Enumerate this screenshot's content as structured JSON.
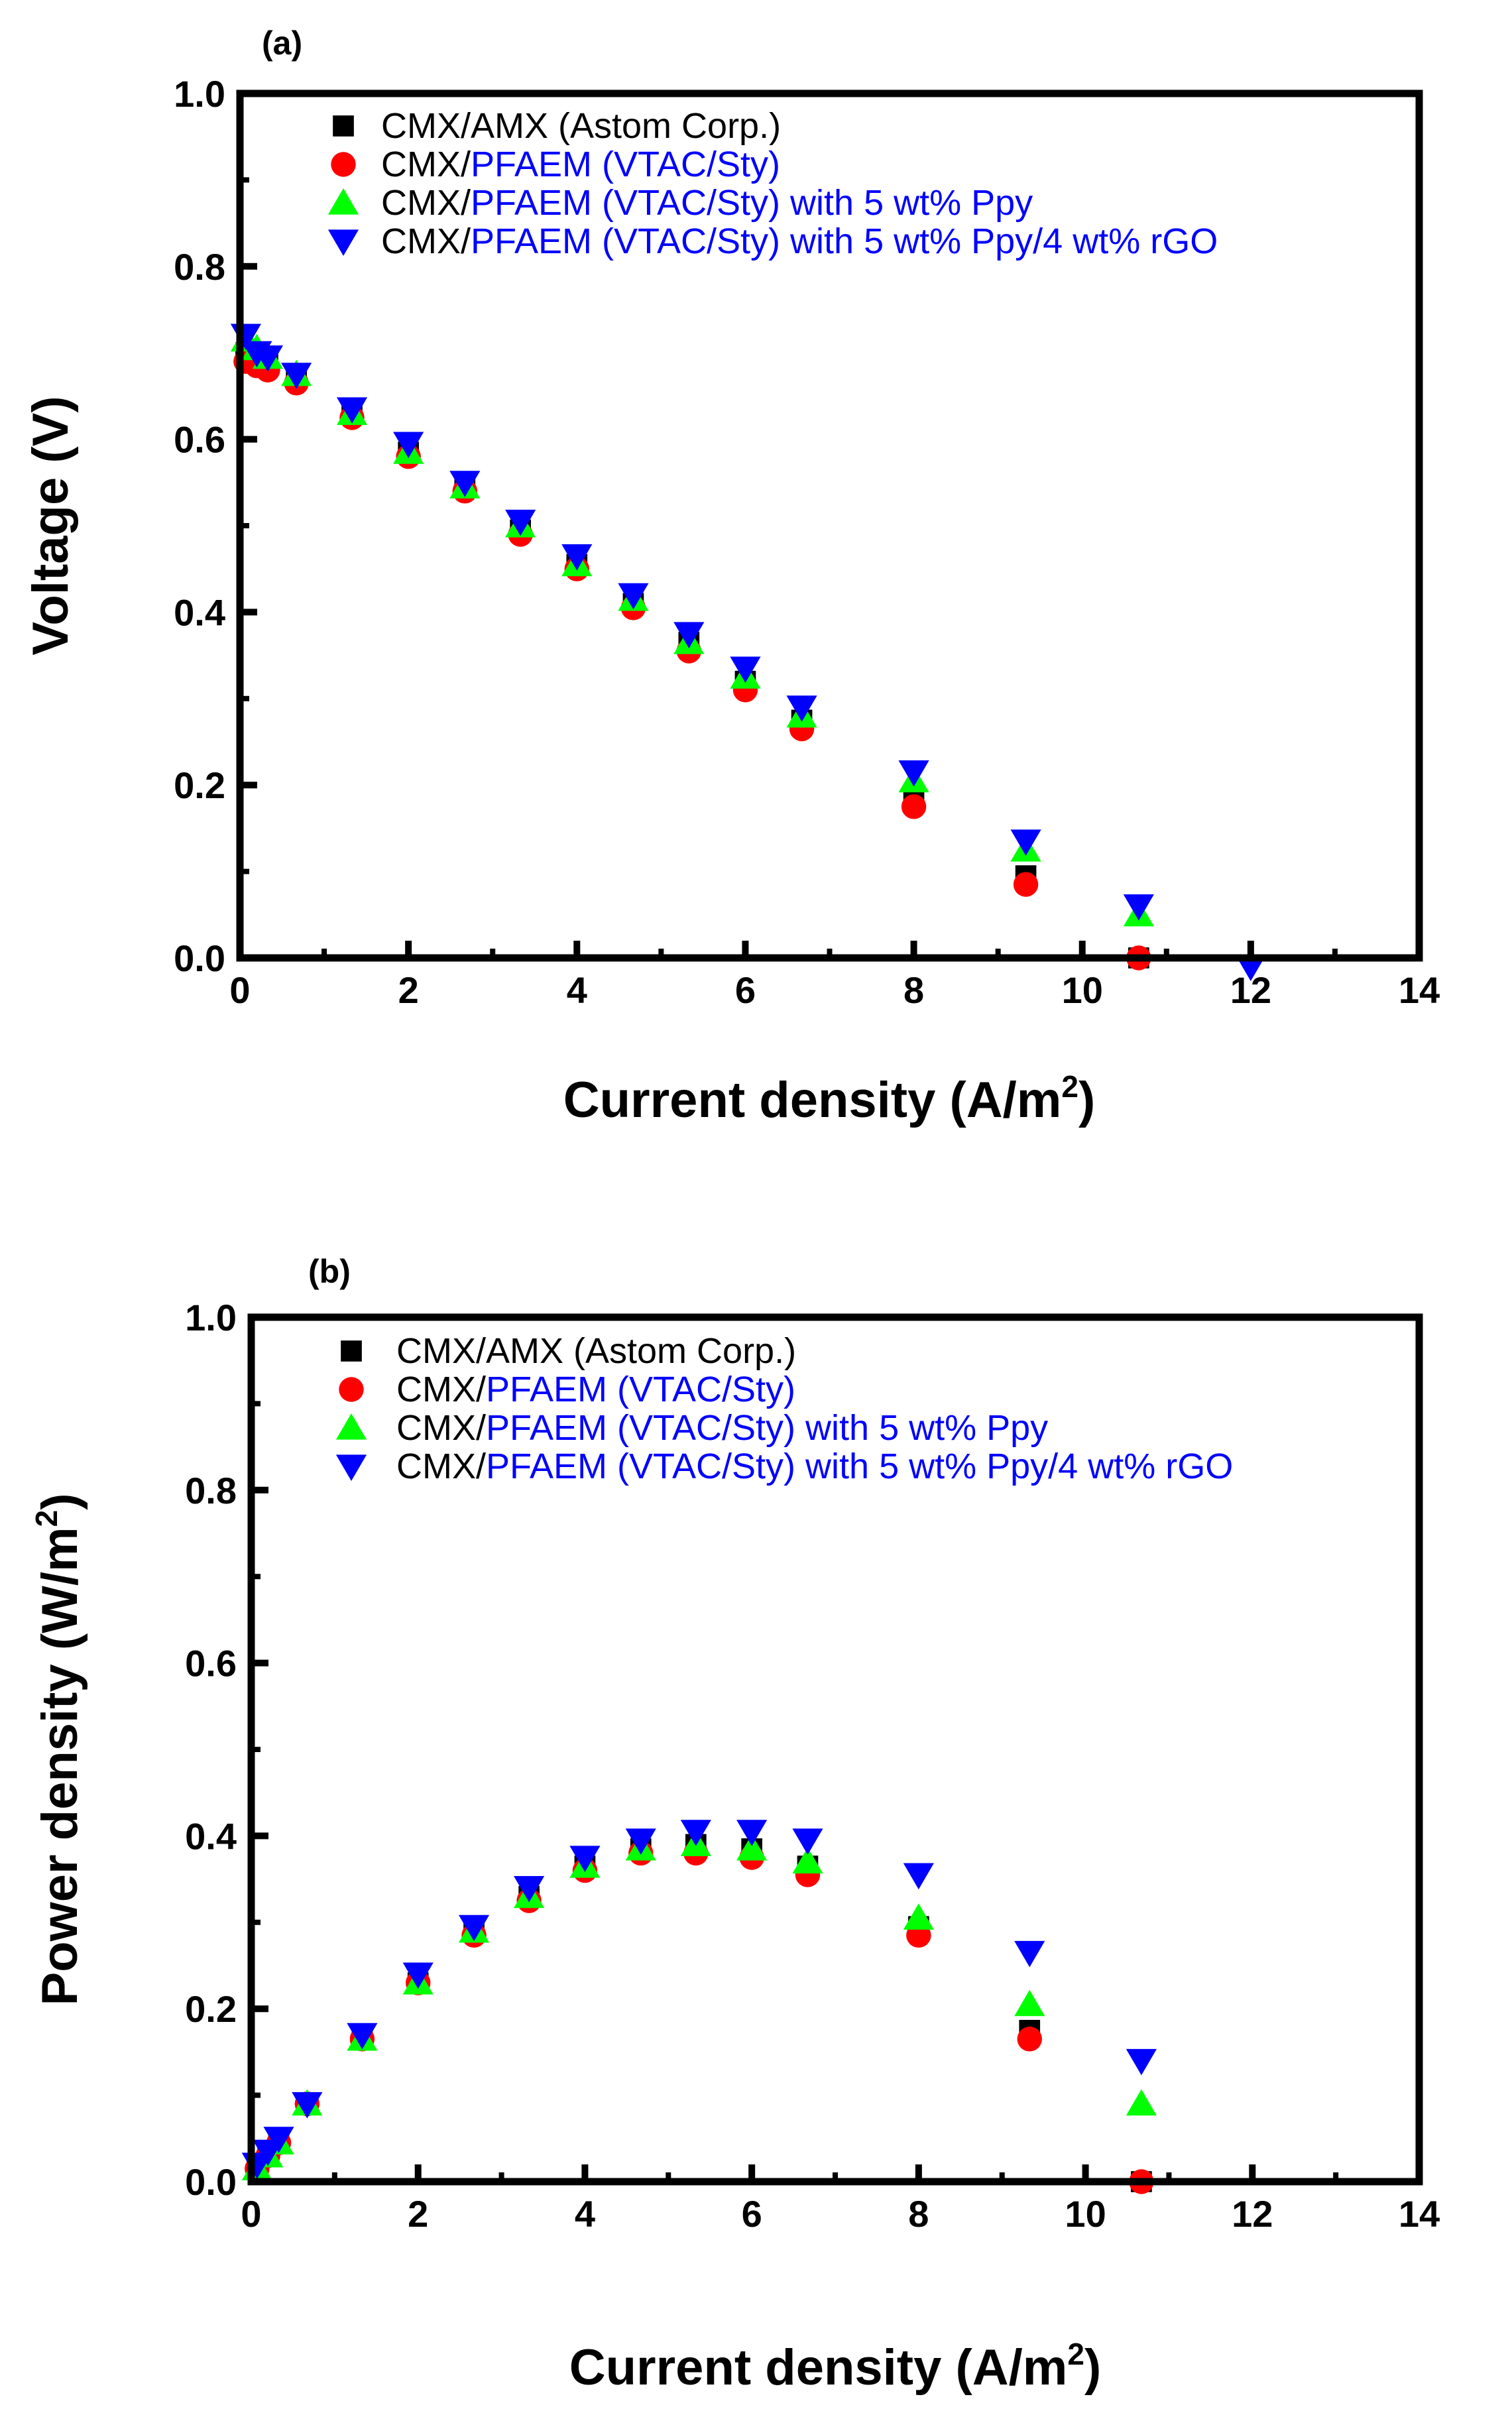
{
  "chart_data": [
    {
      "type": "scatter",
      "panel_label": "(a)",
      "xlabel": "Current density (A/m",
      "xlabel_sup": "2",
      "xlabel_close": ")",
      "ylabel": "Voltage (V)",
      "ylabel_sup": "",
      "ylabel_close": "",
      "xlim": [
        0,
        14
      ],
      "ylim": [
        0,
        1.0
      ],
      "xticks": [
        "0",
        "2",
        "4",
        "6",
        "8",
        "10",
        "12",
        "14"
      ],
      "yticks": [
        "0.0",
        "0.2",
        "0.4",
        "0.6",
        "0.8",
        "1.0"
      ],
      "legend_position": "top-left",
      "series": [
        {
          "name": "CMX/AMX (Astom Corp.)",
          "label_prefix": "CMX/AMX (Astom Corp.)",
          "label_suffix": "",
          "marker": "square",
          "color": "#000000",
          "x": [
            0.07,
            0.2,
            0.33,
            0.67,
            1.33,
            2.0,
            2.67,
            3.33,
            4.0,
            4.67,
            5.33,
            6.0,
            6.67,
            8.0,
            9.33,
            10.67
          ],
          "y": [
            0.7,
            0.695,
            0.69,
            0.67,
            0.63,
            0.585,
            0.545,
            0.495,
            0.455,
            0.41,
            0.365,
            0.32,
            0.275,
            0.185,
            0.095,
            0.0
          ]
        },
        {
          "name": "CMX/PFAEM (VTAC/Sty)",
          "label_prefix": "CMX/",
          "label_suffix": "PFAEM (VTAC/Sty)",
          "marker": "circle",
          "color": "#ff0000",
          "x": [
            0.07,
            0.2,
            0.33,
            0.67,
            1.33,
            2.0,
            2.67,
            3.33,
            4.0,
            4.67,
            5.33,
            6.0,
            6.67,
            8.0,
            9.33,
            10.67
          ],
          "y": [
            0.69,
            0.685,
            0.68,
            0.665,
            0.625,
            0.58,
            0.54,
            0.49,
            0.45,
            0.405,
            0.355,
            0.31,
            0.265,
            0.175,
            0.085,
            0.0
          ]
        },
        {
          "name": "CMX/PFAEM (VTAC/Sty) with 5 wt% Ppy",
          "label_prefix": "CMX/",
          "label_suffix": "PFAEM (VTAC/Sty) with 5 wt% Ppy",
          "marker": "triangle-up",
          "color": "#00ff00",
          "x": [
            0.07,
            0.2,
            0.33,
            0.67,
            1.33,
            2.0,
            2.67,
            3.33,
            4.0,
            4.67,
            5.33,
            6.0,
            6.67,
            8.0,
            9.33,
            10.67
          ],
          "y": [
            0.715,
            0.705,
            0.695,
            0.675,
            0.63,
            0.585,
            0.545,
            0.5,
            0.455,
            0.415,
            0.365,
            0.325,
            0.28,
            0.205,
            0.125,
            0.05
          ]
        },
        {
          "name": "CMX/PFAEM (VTAC/Sty) with 5 wt% Ppy/4 wt% rGO",
          "label_prefix": "CMX/",
          "label_suffix": "PFAEM (VTAC/Sty) with 5 wt% Ppy/4 wt% rGO",
          "marker": "triangle-down",
          "color": "#0000ff",
          "x": [
            0.07,
            0.2,
            0.33,
            0.67,
            1.33,
            2.0,
            2.67,
            3.33,
            4.0,
            4.67,
            5.33,
            6.0,
            6.67,
            8.0,
            9.33,
            10.67,
            12.0
          ],
          "y": [
            0.72,
            0.7,
            0.695,
            0.675,
            0.635,
            0.595,
            0.55,
            0.505,
            0.465,
            0.42,
            0.375,
            0.335,
            0.29,
            0.215,
            0.135,
            0.06,
            -0.01
          ]
        }
      ]
    },
    {
      "type": "scatter",
      "panel_label": "(b)",
      "xlabel": "Current density (A/m",
      "xlabel_sup": "2",
      "xlabel_close": ")",
      "ylabel": "Power density (W/m",
      "ylabel_sup": "2",
      "ylabel_close": ")",
      "xlim": [
        0,
        14
      ],
      "ylim": [
        0,
        1.0
      ],
      "xticks": [
        "0",
        "2",
        "4",
        "6",
        "8",
        "10",
        "12",
        "14"
      ],
      "yticks": [
        "0.0",
        "0.2",
        "0.4",
        "0.6",
        "0.8",
        "1.0"
      ],
      "legend_position": "top-left",
      "series": [
        {
          "name": "CMX/AMX (Astom Corp.)",
          "label_prefix": "CMX/AMX (Astom Corp.)",
          "label_suffix": "",
          "marker": "square",
          "color": "#000000",
          "x": [
            0.07,
            0.2,
            0.33,
            0.67,
            1.33,
            2.0,
            2.67,
            3.33,
            4.0,
            4.67,
            5.33,
            6.0,
            6.67,
            8.0,
            9.33,
            10.67
          ],
          "y": [
            0.015,
            0.03,
            0.045,
            0.09,
            0.165,
            0.23,
            0.29,
            0.33,
            0.365,
            0.385,
            0.39,
            0.385,
            0.365,
            0.295,
            0.175,
            0.0
          ]
        },
        {
          "name": "CMX/PFAEM (VTAC/Sty)",
          "label_prefix": "CMX/",
          "label_suffix": "PFAEM (VTAC/Sty)",
          "marker": "circle",
          "color": "#ff0000",
          "x": [
            0.07,
            0.2,
            0.33,
            0.67,
            1.33,
            2.0,
            2.67,
            3.33,
            4.0,
            4.67,
            5.33,
            6.0,
            6.67,
            8.0,
            9.33,
            10.67
          ],
          "y": [
            0.015,
            0.03,
            0.045,
            0.09,
            0.165,
            0.23,
            0.285,
            0.325,
            0.36,
            0.38,
            0.38,
            0.375,
            0.355,
            0.285,
            0.165,
            0.0
          ]
        },
        {
          "name": "CMX/PFAEM (VTAC/Sty) with 5 wt% Ppy",
          "label_prefix": "CMX/",
          "label_suffix": "PFAEM (VTAC/Sty) with 5 wt% Ppy",
          "marker": "triangle-up",
          "color": "#00ff00",
          "x": [
            0.07,
            0.2,
            0.33,
            0.67,
            1.33,
            2.0,
            2.67,
            3.33,
            4.0,
            4.67,
            5.33,
            6.0,
            6.67,
            8.0,
            9.33,
            10.67
          ],
          "y": [
            0.015,
            0.03,
            0.045,
            0.09,
            0.165,
            0.23,
            0.29,
            0.33,
            0.365,
            0.385,
            0.39,
            0.385,
            0.37,
            0.305,
            0.205,
            0.09
          ]
        },
        {
          "name": "CMX/PFAEM (VTAC/Sty) with 5 wt% Ppy/4 wt% rGO",
          "label_prefix": "CMX/",
          "label_suffix": "PFAEM (VTAC/Sty) with 5 wt% Ppy/4 wt% rGO",
          "marker": "triangle-down",
          "color": "#0000ff",
          "x": [
            0.07,
            0.2,
            0.33,
            0.67,
            1.33,
            2.0,
            2.67,
            3.33,
            4.0,
            4.67,
            5.33,
            6.0,
            6.67,
            8.0,
            9.33,
            10.67
          ],
          "y": [
            0.02,
            0.035,
            0.05,
            0.09,
            0.17,
            0.24,
            0.295,
            0.34,
            0.375,
            0.395,
            0.405,
            0.405,
            0.395,
            0.355,
            0.265,
            0.14
          ]
        }
      ]
    }
  ]
}
